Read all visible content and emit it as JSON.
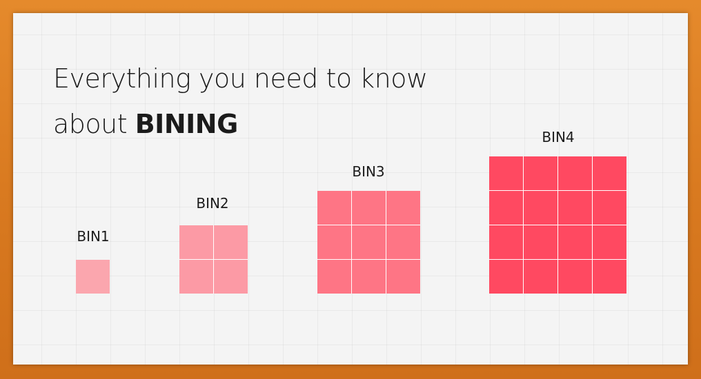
{
  "title": {
    "line1": "Everything you need to know",
    "line2_prefix": "about ",
    "line2_bold": "BINING"
  },
  "bins": [
    {
      "label": "BIN1",
      "size": 1,
      "color": "#fba6ae"
    },
    {
      "label": "BIN2",
      "size": 2,
      "color": "#fc9aa5"
    },
    {
      "label": "BIN3",
      "size": 3,
      "color": "#fe7585"
    },
    {
      "label": "BIN4",
      "size": 4,
      "color": "#ff4961"
    }
  ],
  "colors": {
    "background": "#f4f4f4",
    "frame": "#d9781f",
    "text": "#1b1b1b"
  }
}
